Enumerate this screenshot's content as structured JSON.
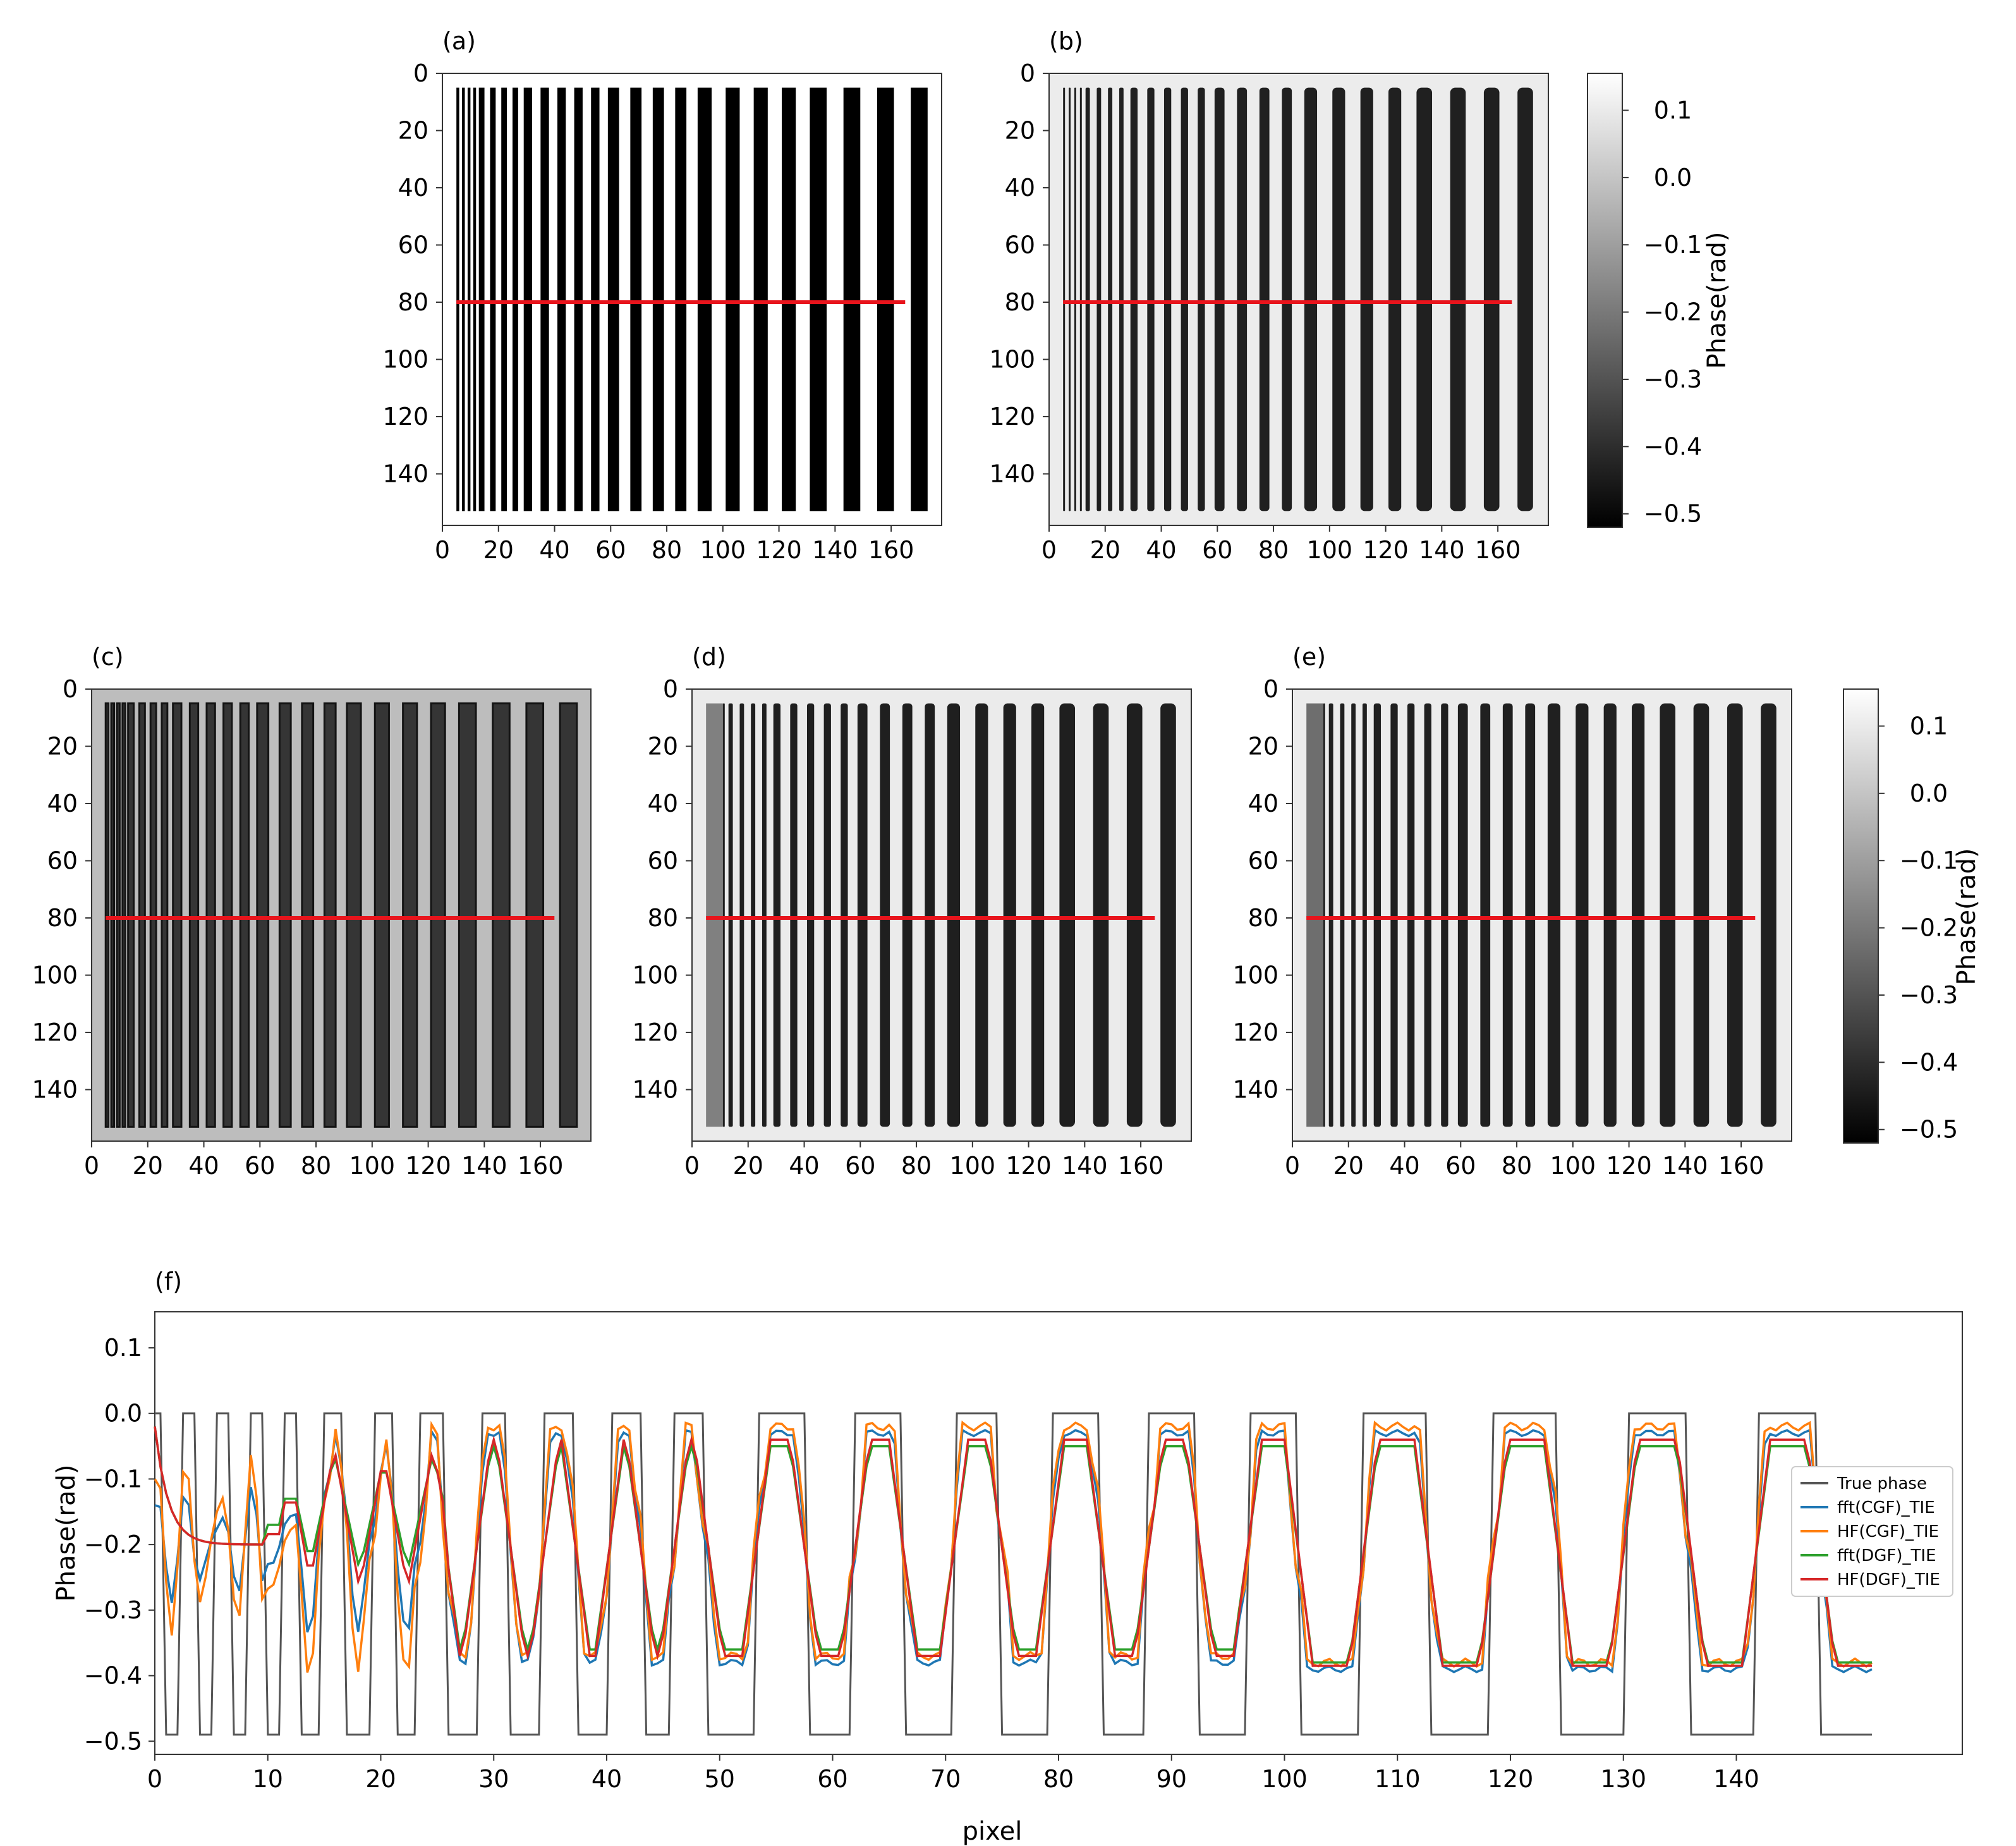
{
  "figure": {
    "colorbar_label": "Phase(rad)",
    "colorbar_ticks": [
      "0.1",
      "0.0",
      "−0.1",
      "−0.2",
      "−0.3",
      "−0.4",
      "−0.5"
    ],
    "colors": {
      "profile_line": "#e8141c",
      "frame": "#333333"
    }
  },
  "panels": [
    {
      "id": "a",
      "label": "(a)",
      "kind": "ground-truth"
    },
    {
      "id": "b",
      "label": "(b)",
      "kind": "fft(CGF)_TIE"
    },
    {
      "id": "c",
      "label": "(c)",
      "kind": "HF(CGF)_TIE"
    },
    {
      "id": "d",
      "label": "(d)",
      "kind": "fft(DGF)_TIE"
    },
    {
      "id": "e",
      "label": "(e)",
      "kind": "HF(DGF)_TIE"
    }
  ],
  "image_axes": {
    "x_ticks": [
      0,
      20,
      40,
      60,
      80,
      100,
      120,
      140,
      160
    ],
    "y_ticks": [
      0,
      20,
      40,
      60,
      80,
      100,
      120,
      140
    ],
    "xlim": [
      0,
      178
    ],
    "ylim": [
      0,
      158
    ],
    "profile_row": 80,
    "profile_x_range": [
      5,
      165
    ],
    "bars_x_range": [
      5,
      165
    ],
    "bars_y_range": [
      5,
      153
    ],
    "bar_widths": [
      1,
      1,
      1,
      1,
      2,
      2,
      2,
      2,
      3,
      3,
      3,
      3,
      3,
      4,
      4,
      4,
      4,
      5,
      5,
      5,
      5,
      6,
      6,
      6,
      6
    ]
  },
  "chart_data": {
    "type": "line",
    "panel_label": "(f)",
    "title": "",
    "xlabel": "pixel",
    "ylabel": "Phase(rad)",
    "xlim": [
      0,
      160
    ],
    "ylim": [
      -0.52,
      0.155
    ],
    "x_ticks": [
      0,
      10,
      20,
      30,
      40,
      50,
      60,
      70,
      80,
      90,
      100,
      110,
      120,
      130,
      140
    ],
    "y_ticks": [
      0.1,
      0.0,
      -0.1,
      -0.2,
      -0.3,
      -0.4,
      -0.5
    ],
    "y_tick_labels": [
      "0.1",
      "0.0",
      "−0.1",
      "−0.2",
      "−0.3",
      "−0.4",
      "−0.5"
    ],
    "legend": "right",
    "series": [
      {
        "name": "True phase",
        "color": "#555555",
        "low": -0.49,
        "high": 0.0,
        "near_low": -0.49,
        "far_low": -0.49,
        "overshoot": 0
      },
      {
        "name": "fft(CGF)_TIE",
        "color": "#1f77b4",
        "low": -0.38,
        "high": -0.03,
        "near_low": -0.33,
        "far_low": -0.39,
        "overshoot": 0.03
      },
      {
        "name": "HF(CGF)_TIE",
        "color": "#ff7f0e",
        "low": -0.37,
        "high": -0.02,
        "near_low": -0.39,
        "far_low": -0.38,
        "overshoot": 0.04
      },
      {
        "name": "fft(DGF)_TIE",
        "color": "#2ca02c",
        "low": -0.36,
        "high": -0.05,
        "near_low": -0.25,
        "far_low": -0.38,
        "overshoot": 0
      },
      {
        "name": "HF(DGF)_TIE",
        "color": "#d62728",
        "low": -0.37,
        "high": -0.04,
        "near_low": -0.28,
        "far_low": -0.385,
        "overshoot": 0
      }
    ]
  }
}
